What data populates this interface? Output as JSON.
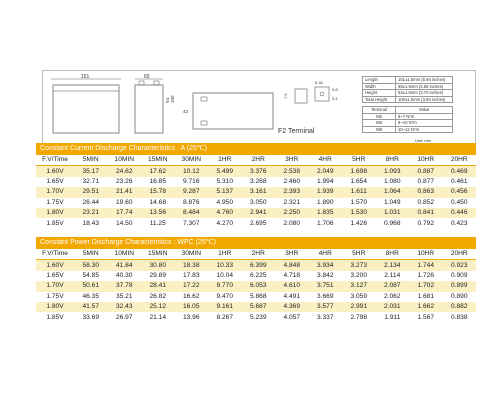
{
  "drawing": {
    "dim_length_label": "151",
    "dim_width_label": "65",
    "dim_height_label": "94",
    "dim_total_label": "100",
    "side_label": "43",
    "terminal_dim_a": "6.35",
    "terminal_dim_b": "7.5",
    "terminal_dim_c": "0.8",
    "terminal_dim_d": "3.4",
    "terminal_name": "F2 Terminal"
  },
  "specs": [
    {
      "key": "Length",
      "value": "151±1.5mm (5.94 inches)"
    },
    {
      "key": "Width",
      "value": "65±1.5mm (2.56 inches)"
    },
    {
      "key": "Height",
      "value": "94±1.5mm (3.70 inches)"
    },
    {
      "key": "Total Height",
      "value": "100±1.5mm (3.94 inches)"
    }
  ],
  "torque": {
    "header_key": "Terminal",
    "header_value": "Value",
    "rows": [
      {
        "key": "M5",
        "value": "6~7    N*m"
      },
      {
        "key": "M6",
        "value": "8~10   N*m"
      },
      {
        "key": "M8",
        "value": "10~12  N*m"
      }
    ],
    "unit_note": "Unit: mm"
  },
  "current_table": {
    "title": "Constant Current Discharge Characteristics : A (25℃)",
    "headers": [
      "F.V/Time",
      "5MIN",
      "10MIN",
      "15MIN",
      "30MIN",
      "1HR",
      "2HR",
      "3HR",
      "4HR",
      "5HR",
      "8HR",
      "10HR",
      "20HR"
    ],
    "rows": [
      [
        "1.60V",
        "35.17",
        "24.62",
        "17.62",
        "10.12",
        "5.499",
        "3.376",
        "2.538",
        "2.049",
        "1.698",
        "1.093",
        "0.887",
        "0.469"
      ],
      [
        "1.65V",
        "32.71",
        "23.26",
        "16.85",
        "9.716",
        "5.310",
        "3.268",
        "2.460",
        "1.994",
        "1.654",
        "1.080",
        "0.877",
        "0.461"
      ],
      [
        "1.70V",
        "29.51",
        "21.41",
        "15.78",
        "9.287",
        "5.137",
        "3.161",
        "2.393",
        "1.939",
        "1.611",
        "1.064",
        "0.863",
        "0.456"
      ],
      [
        "1.75V",
        "26.44",
        "19.60",
        "14.68",
        "8.876",
        "4.950",
        "3.050",
        "2.321",
        "1.890",
        "1.570",
        "1.049",
        "0.852",
        "0.450"
      ],
      [
        "1.80V",
        "23.21",
        "17.74",
        "13.56",
        "8.484",
        "4.760",
        "2.941",
        "2.250",
        "1.835",
        "1.530",
        "1.031",
        "0.841",
        "0.446"
      ],
      [
        "1.85V",
        "18.43",
        "14.50",
        "11.25",
        "7.307",
        "4.270",
        "2.695",
        "2.080",
        "1.706",
        "1.426",
        "0.968",
        "0.792",
        "0.423"
      ]
    ]
  },
  "power_table": {
    "title": "Constant Power Discharge Characteristics : WPC (25℃)",
    "headers": [
      "F.V/Time",
      "5MIN",
      "10MIN",
      "15MIN",
      "30MIN",
      "1HR",
      "2HR",
      "3HR",
      "4HR",
      "5HR",
      "8HR",
      "10HR",
      "20HR"
    ],
    "rows": [
      [
        "1.60V",
        "58.30",
        "41.84",
        "30.80",
        "18.38",
        "10.33",
        "6.399",
        "4.848",
        "3.934",
        "3.273",
        "2.134",
        "1.744",
        "0.923"
      ],
      [
        "1.65V",
        "54.85",
        "40.30",
        "29.89",
        "17.83",
        "10.04",
        "6.225",
        "4.718",
        "3.842",
        "3.200",
        "2.114",
        "1.726",
        "0.909"
      ],
      [
        "1.70V",
        "50.61",
        "37.78",
        "28.41",
        "17.22",
        "9.770",
        "6.053",
        "4.610",
        "3.751",
        "3.127",
        "2.087",
        "1.702",
        "0.899"
      ],
      [
        "1.75V",
        "46.35",
        "35.21",
        "26.82",
        "16.62",
        "9.470",
        "5.868",
        "4.491",
        "3.669",
        "3.059",
        "2.062",
        "1.681",
        "0.890"
      ],
      [
        "1.80V",
        "41.57",
        "32.43",
        "25.12",
        "16.05",
        "9.161",
        "5.687",
        "4.369",
        "3.577",
        "2.991",
        "2.031",
        "1.662",
        "0.882"
      ],
      [
        "1.85V",
        "33.69",
        "26.97",
        "21.14",
        "13.96",
        "8.267",
        "5.239",
        "4.057",
        "3.337",
        "2.798",
        "1.911",
        "1.567",
        "0.838"
      ]
    ]
  }
}
